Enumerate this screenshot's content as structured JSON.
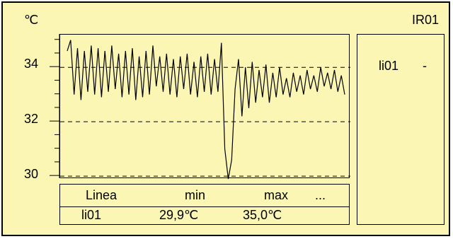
{
  "unit_label": "℃",
  "channel_label": "IR01",
  "legend": {
    "headers": [
      "Linea",
      "min",
      "max",
      "..."
    ],
    "rows": [
      {
        "line": "li01",
        "min": "29,9℃",
        "max": "35,0℃"
      }
    ]
  },
  "side_panel": {
    "items": [
      {
        "label": "li01",
        "value": "-"
      }
    ]
  },
  "chart_data": {
    "type": "line",
    "ylim": [
      29.9,
      35.2
    ],
    "yticks": [
      30,
      32,
      34
    ],
    "ytick_labels": [
      "30",
      "32",
      "34"
    ],
    "grid": "dashed horizontal at 30, 32, 34",
    "series": [
      {
        "name": "li01",
        "color": "#000000",
        "values": [
          34.6,
          35.0,
          33.0,
          34.7,
          32.8,
          34.6,
          33.1,
          34.8,
          33.0,
          34.7,
          32.9,
          34.6,
          33.1,
          34.8,
          33.2,
          34.5,
          32.9,
          34.6,
          33.0,
          34.7,
          32.8,
          34.4,
          32.9,
          34.6,
          33.0,
          34.8,
          33.3,
          34.4,
          33.1,
          34.5,
          33.0,
          34.3,
          32.9,
          34.4,
          33.2,
          34.5,
          33.0,
          34.2,
          32.9,
          34.4,
          33.1,
          34.5,
          33.0,
          34.3,
          33.1,
          34.9,
          31.0,
          29.9,
          30.6,
          33.2,
          34.3,
          32.2,
          34.0,
          32.5,
          34.2,
          32.7,
          33.9,
          32.9,
          34.1,
          32.7,
          33.8,
          32.9,
          34.0,
          33.0,
          33.6,
          32.9,
          33.8,
          33.1,
          33.7,
          33.0,
          33.9,
          33.2,
          33.7,
          33.1,
          34.0,
          33.3,
          33.8,
          33.2,
          33.9,
          33.1,
          33.7,
          33.0
        ]
      }
    ]
  }
}
